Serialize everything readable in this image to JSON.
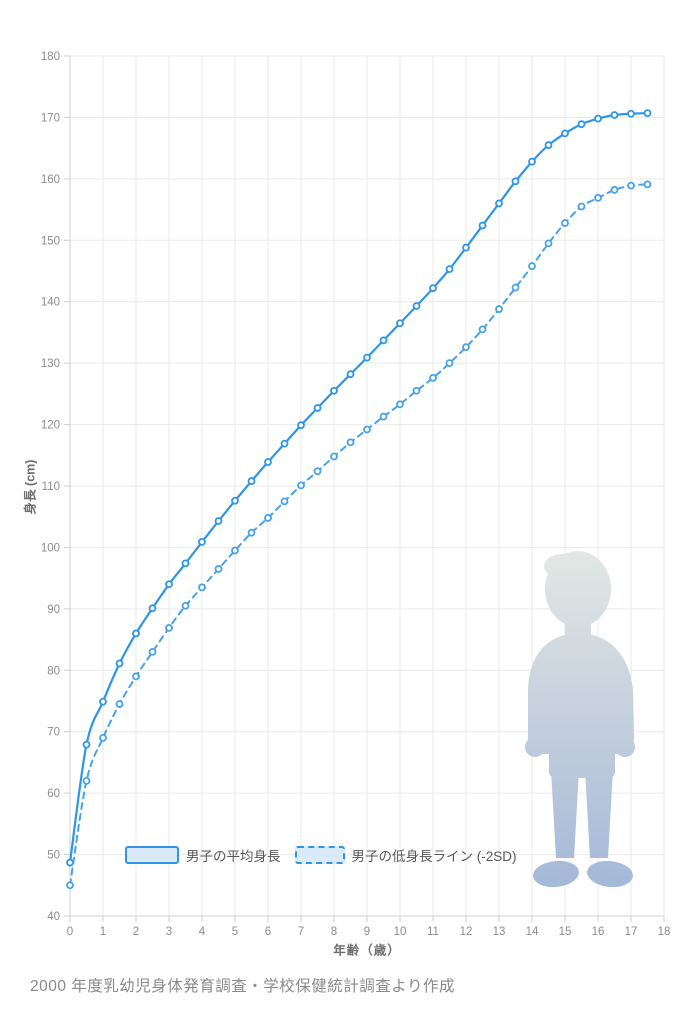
{
  "caption": "2000 年度乳幼児身体発育調査・学校保健統計調査より作成",
  "colors": {
    "line_solid": "#2e96e6",
    "line_dashed": "#47a2e9",
    "marker_fill": "#ffffff",
    "grid": "#e9e9e9",
    "axis": "#d2d2d2",
    "tick": "#cfcfcf",
    "tick_text": "#8c8c8c",
    "legend_fill": "#d9eafa",
    "silhouette_gradient": [
      "#e3e8e4",
      "#c8d2de",
      "#a4b8d8"
    ]
  },
  "chart_data": {
    "type": "line",
    "title": "",
    "xlabel": "年齢（歳）",
    "ylabel": "身長 (cm)",
    "xlim": [
      0,
      18
    ],
    "ylim": [
      40,
      180
    ],
    "x_tick_step": 1,
    "y_tick_step": 10,
    "grid": true,
    "legend_position": "bottom-inside",
    "x": [
      0,
      0.5,
      1,
      1.5,
      2,
      2.5,
      3,
      3.5,
      4,
      4.5,
      5,
      5.5,
      6,
      6.5,
      7,
      7.5,
      8,
      8.5,
      9,
      9.5,
      10,
      10.5,
      11,
      11.5,
      12,
      12.5,
      13,
      13.5,
      14,
      14.5,
      15,
      15.5,
      16,
      16.5,
      17,
      17.5
    ],
    "series": [
      {
        "name": "男子の平均身長",
        "style": "solid",
        "color": "#2e96e6",
        "values": [
          48.7,
          67.9,
          74.9,
          81.1,
          86.0,
          90.1,
          94.0,
          97.4,
          100.9,
          104.3,
          107.6,
          110.8,
          113.9,
          116.9,
          119.9,
          122.7,
          125.5,
          128.2,
          130.9,
          133.7,
          136.5,
          139.3,
          142.2,
          145.3,
          148.8,
          152.4,
          156.0,
          159.6,
          162.8,
          165.5,
          167.4,
          168.9,
          169.8,
          170.4,
          170.6,
          170.7
        ]
      },
      {
        "name": "男子の低身長ライン (-2SD)",
        "style": "dashed",
        "color": "#47a2e9",
        "values": [
          45.0,
          62.0,
          69.0,
          74.5,
          79.0,
          83.0,
          86.9,
          90.5,
          93.5,
          96.5,
          99.5,
          102.4,
          104.8,
          107.5,
          110.1,
          112.4,
          114.8,
          117.1,
          119.2,
          121.3,
          123.3,
          125.5,
          127.6,
          130.0,
          132.6,
          135.5,
          138.8,
          142.3,
          145.8,
          149.5,
          152.8,
          155.5,
          156.9,
          158.2,
          158.9,
          159.1
        ]
      }
    ]
  }
}
